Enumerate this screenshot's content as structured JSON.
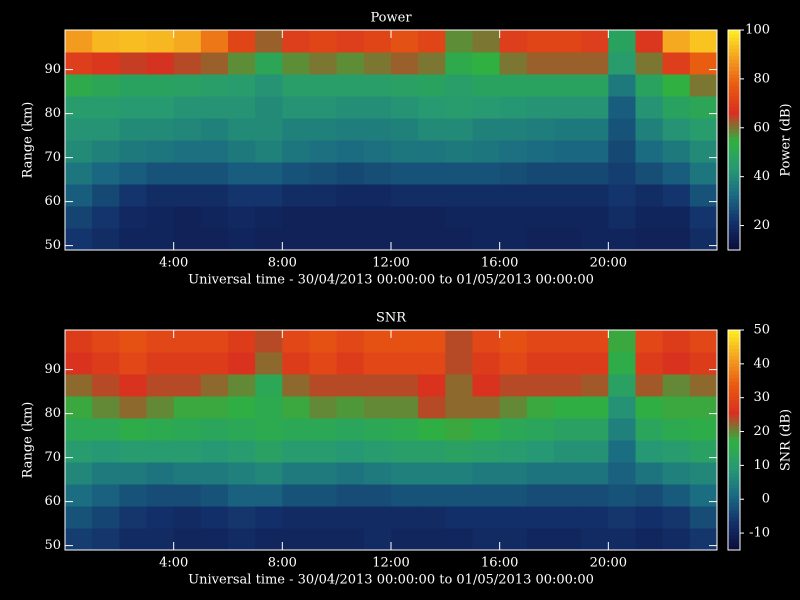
{
  "chart_data": [
    {
      "type": "heatmap",
      "title": "Power",
      "xlabel": "Universal time - 30/04/2013 00:00:00 to 01/05/2013 00:00:00",
      "ylabel": "Range (km)",
      "xlim": [
        0,
        24
      ],
      "ylim": [
        49,
        99
      ],
      "xticks": [
        {
          "value": 4,
          "label": "4:00"
        },
        {
          "value": 8,
          "label": "8:00"
        },
        {
          "value": 12,
          "label": "12:00"
        },
        {
          "value": 16,
          "label": "16:00"
        },
        {
          "value": 20,
          "label": "20:00"
        }
      ],
      "yticks": [
        50,
        60,
        70,
        80,
        90
      ],
      "colorbar": {
        "label": "Power (dB)",
        "lim": [
          10,
          100
        ],
        "ticks": [
          20,
          40,
          60,
          80,
          100
        ]
      },
      "colormap": [
        "#0a0a38",
        "#13306a",
        "#1a6a82",
        "#279a72",
        "#30b040",
        "#d83020",
        "#e85a10",
        "#f4a020",
        "#ffee20"
      ],
      "x": [
        0.5,
        1.5,
        2.5,
        3.5,
        4.5,
        5.5,
        6.5,
        7.5,
        8.5,
        9.5,
        10.5,
        11.5,
        12.5,
        13.5,
        14.5,
        15.5,
        16.5,
        17.5,
        18.5,
        19.5,
        20.5,
        21.5,
        22.5,
        23.5
      ],
      "y": [
        51.5,
        56.5,
        61.5,
        66.5,
        71.5,
        76.5,
        81.5,
        86.5,
        91.5,
        96.5
      ],
      "z": [
        [
          22,
          20,
          18,
          18,
          17,
          17,
          18,
          17,
          17,
          17,
          17,
          17,
          17,
          17,
          17,
          18,
          18,
          17,
          17,
          18,
          18,
          17,
          17,
          20
        ],
        [
          25,
          22,
          19,
          18,
          17,
          18,
          19,
          18,
          17,
          17,
          17,
          17,
          17,
          17,
          18,
          18,
          18,
          18,
          18,
          18,
          20,
          18,
          18,
          22
        ],
        [
          30,
          26,
          22,
          20,
          20,
          20,
          22,
          22,
          20,
          20,
          19,
          19,
          20,
          20,
          20,
          20,
          20,
          20,
          20,
          20,
          22,
          20,
          22,
          28
        ],
        [
          35,
          32,
          30,
          28,
          28,
          28,
          30,
          30,
          28,
          27,
          26,
          27,
          28,
          28,
          28,
          28,
          27,
          26,
          26,
          26,
          24,
          27,
          30,
          35
        ],
        [
          40,
          38,
          36,
          35,
          34,
          34,
          36,
          38,
          35,
          34,
          33,
          34,
          35,
          35,
          36,
          35,
          34,
          33,
          32,
          32,
          26,
          33,
          36,
          40
        ],
        [
          42,
          42,
          40,
          40,
          39,
          38,
          40,
          40,
          38,
          38,
          37,
          37,
          38,
          40,
          40,
          38,
          38,
          37,
          36,
          36,
          28,
          38,
          42,
          45
        ],
        [
          45,
          45,
          44,
          44,
          42,
          42,
          42,
          40,
          42,
          42,
          41,
          41,
          42,
          44,
          45,
          44,
          43,
          42,
          42,
          42,
          30,
          42,
          48,
          50
        ],
        [
          52,
          50,
          48,
          48,
          47,
          46,
          45,
          42,
          46,
          46,
          46,
          46,
          47,
          48,
          46,
          48,
          48,
          48,
          48,
          48,
          36,
          48,
          55,
          60
        ],
        [
          70,
          68,
          65,
          66,
          64,
          62,
          58,
          50,
          58,
          60,
          58,
          60,
          62,
          60,
          52,
          55,
          60,
          62,
          62,
          62,
          45,
          60,
          70,
          78
        ],
        [
          88,
          92,
          93,
          92,
          90,
          82,
          72,
          62,
          70,
          72,
          70,
          72,
          75,
          72,
          58,
          60,
          70,
          72,
          72,
          70,
          48,
          68,
          90,
          94
        ]
      ]
    },
    {
      "type": "heatmap",
      "title": "SNR",
      "xlabel": "Universal time - 30/04/2013 00:00:00 to 01/05/2013 00:00:00",
      "ylabel": "Range (km)",
      "xlim": [
        0,
        24
      ],
      "ylim": [
        49,
        99
      ],
      "xticks": [
        {
          "value": 4,
          "label": "4:00"
        },
        {
          "value": 8,
          "label": "8:00"
        },
        {
          "value": 12,
          "label": "12:00"
        },
        {
          "value": 16,
          "label": "16:00"
        },
        {
          "value": 20,
          "label": "20:00"
        }
      ],
      "yticks": [
        50,
        60,
        70,
        80,
        90
      ],
      "colorbar": {
        "label": "SNR (dB)",
        "lim": [
          -15,
          50
        ],
        "ticks": [
          -10,
          0,
          10,
          20,
          30,
          40,
          50
        ]
      },
      "colormap": [
        "#0a0a38",
        "#13306a",
        "#1a6a82",
        "#279a72",
        "#30b040",
        "#d83020",
        "#e85a10",
        "#f4a020",
        "#ffee20"
      ],
      "x": [
        0.5,
        1.5,
        2.5,
        3.5,
        4.5,
        5.5,
        6.5,
        7.5,
        8.5,
        9.5,
        10.5,
        11.5,
        12.5,
        13.5,
        14.5,
        15.5,
        16.5,
        17.5,
        18.5,
        19.5,
        20.5,
        21.5,
        22.5,
        23.5
      ],
      "y": [
        51.5,
        56.5,
        61.5,
        66.5,
        71.5,
        76.5,
        81.5,
        86.5,
        91.5,
        96.5
      ],
      "z": [
        [
          -5,
          -6,
          -8,
          -8,
          -9,
          -9,
          -8,
          -9,
          -9,
          -9,
          -9,
          -8,
          -9,
          -9,
          -9,
          -8,
          -8,
          -9,
          -9,
          -8,
          -8,
          -9,
          -8,
          -6
        ],
        [
          -2,
          -4,
          -6,
          -7,
          -8,
          -7,
          -6,
          -7,
          -8,
          -8,
          -8,
          -8,
          -8,
          -8,
          -7,
          -7,
          -7,
          -7,
          -7,
          -7,
          -6,
          -7,
          -6,
          -3
        ],
        [
          2,
          0,
          -2,
          -3,
          -3,
          -2,
          0,
          0,
          -2,
          -2,
          -3,
          -3,
          -2,
          -2,
          -2,
          -2,
          -2,
          -3,
          -3,
          -3,
          -2,
          -3,
          -1,
          2
        ],
        [
          6,
          4,
          4,
          3,
          4,
          4,
          5,
          6,
          4,
          4,
          3,
          4,
          5,
          5,
          5,
          4,
          4,
          3,
          3,
          3,
          0,
          3,
          5,
          6
        ],
        [
          10,
          9,
          10,
          10,
          10,
          9,
          10,
          12,
          10,
          10,
          9,
          10,
          11,
          11,
          12,
          11,
          10,
          9,
          8,
          8,
          2,
          9,
          10,
          12
        ],
        [
          14,
          14,
          16,
          15,
          14,
          13,
          14,
          15,
          14,
          14,
          13,
          14,
          15,
          17,
          18,
          16,
          14,
          13,
          12,
          12,
          5,
          13,
          15,
          16
        ],
        [
          18,
          20,
          22,
          20,
          18,
          18,
          17,
          15,
          18,
          20,
          19,
          20,
          20,
          24,
          22,
          22,
          20,
          18,
          17,
          17,
          8,
          17,
          18,
          18
        ],
        [
          22,
          24,
          26,
          24,
          24,
          22,
          20,
          14,
          22,
          24,
          24,
          24,
          24,
          26,
          22,
          26,
          24,
          24,
          24,
          23,
          12,
          23,
          20,
          22
        ],
        [
          26,
          28,
          30,
          28,
          28,
          28,
          26,
          22,
          28,
          30,
          28,
          30,
          30,
          30,
          24,
          28,
          30,
          28,
          28,
          28,
          16,
          28,
          26,
          28
        ],
        [
          28,
          30,
          32,
          30,
          30,
          30,
          28,
          24,
          30,
          32,
          30,
          32,
          32,
          32,
          24,
          30,
          32,
          30,
          30,
          30,
          18,
          30,
          28,
          30
        ]
      ]
    }
  ]
}
